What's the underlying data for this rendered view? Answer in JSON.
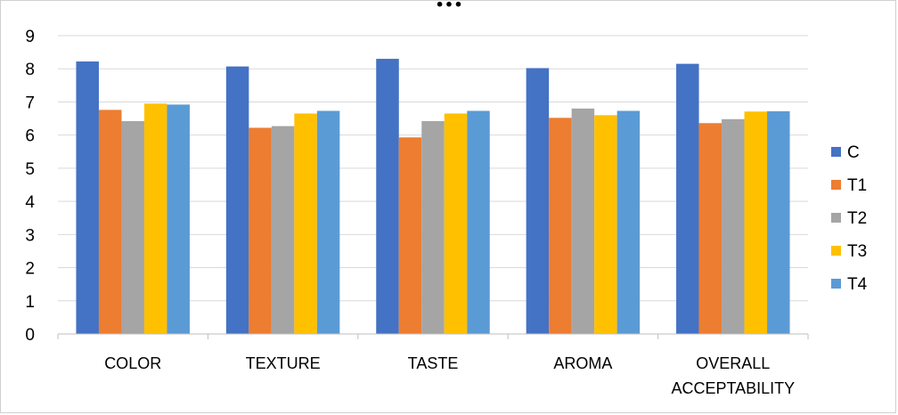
{
  "heading": "...",
  "colors": {
    "C": "#4472C4",
    "T1": "#ED7D31",
    "T2": "#A5A5A5",
    "T3": "#FFC000",
    "T4": "#5B9BD5",
    "grid": "#d9d9d9",
    "axis": "#bfbfbf"
  },
  "chart_data": {
    "type": "bar",
    "title": "",
    "xlabel": "",
    "ylabel": "",
    "ylim": [
      0,
      9
    ],
    "yticks": [
      0,
      1,
      2,
      3,
      4,
      5,
      6,
      7,
      8,
      9
    ],
    "grid": true,
    "legend_position": "right",
    "categories": [
      "COLOR",
      "TEXTURE",
      "TASTE",
      "AROMA",
      "OVERALL ACCEPTABILITY"
    ],
    "category_label_lines": [
      [
        "COLOR"
      ],
      [
        "TEXTURE"
      ],
      [
        "TASTE"
      ],
      [
        "AROMA"
      ],
      [
        "OVERALL",
        "ACCEPTABILITY"
      ]
    ],
    "series": [
      {
        "name": "C",
        "values": [
          8.22,
          8.07,
          8.3,
          8.02,
          8.15
        ]
      },
      {
        "name": "T1",
        "values": [
          6.76,
          6.22,
          5.93,
          6.52,
          6.36
        ]
      },
      {
        "name": "T2",
        "values": [
          6.42,
          6.27,
          6.42,
          6.8,
          6.48
        ]
      },
      {
        "name": "T3",
        "values": [
          6.95,
          6.65,
          6.65,
          6.6,
          6.71
        ]
      },
      {
        "name": "T4",
        "values": [
          6.92,
          6.73,
          6.73,
          6.73,
          6.72
        ]
      }
    ]
  }
}
